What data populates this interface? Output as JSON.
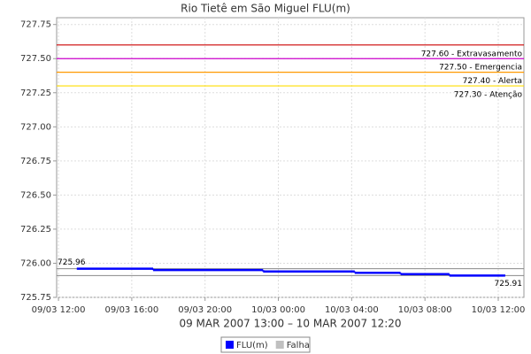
{
  "chart_data": {
    "type": "step-line",
    "title": "Rio Tietê em São Miguel FLU(m)",
    "x_label": "09 MAR 2007 13:00 – 10 MAR 2007 12:20",
    "x": [
      "2007-03-09T13:00",
      "2007-03-09T17:10",
      "2007-03-09T23:10",
      "2007-03-10T04:10",
      "2007-03-10T06:40",
      "2007-03-10T09:20",
      "2007-03-10T12:20"
    ],
    "series": [
      {
        "name": "FLU(m)",
        "color": "#0000ff",
        "values": [
          725.96,
          725.95,
          725.94,
          725.93,
          725.92,
          725.91,
          725.91
        ]
      },
      {
        "name": "Falha",
        "color": "#c0c0c0",
        "values": [
          null,
          null,
          null,
          null,
          null,
          null,
          null
        ]
      }
    ],
    "xlim": [
      "2007-03-09T11:54",
      "2007-03-10T13:24"
    ],
    "xticks": [
      {
        "value": "2007-03-09T12:00",
        "label": "09/03 12:00"
      },
      {
        "value": "2007-03-09T16:00",
        "label": "09/03 16:00"
      },
      {
        "value": "2007-03-09T20:00",
        "label": "09/03 20:00"
      },
      {
        "value": "2007-03-10T00:00",
        "label": "10/03 00:00"
      },
      {
        "value": "2007-03-10T04:00",
        "label": "10/03 04:00"
      },
      {
        "value": "2007-03-10T08:00",
        "label": "10/03 08:00"
      },
      {
        "value": "2007-03-10T12:00",
        "label": "10/03 12:00"
      }
    ],
    "ylim": [
      725.75,
      727.8
    ],
    "yticks": [
      725.75,
      {
        "value": 726,
        "label": "726.00"
      },
      726.25,
      {
        "value": 726.5,
        "label": "726.50"
      },
      726.75,
      {
        "value": 727,
        "label": "727.00"
      },
      727.25,
      {
        "value": 727.5,
        "label": "727.50"
      },
      727.75
    ],
    "grid": true,
    "thresholds": [
      {
        "value": 727.6,
        "label": "727.60 - Extravasamento",
        "color": "#cc0000"
      },
      {
        "value": 727.5,
        "label": "727.50 - Emergencia",
        "color": "#cc00cc"
      },
      {
        "value": 727.4,
        "label": "727.40 - Alerta",
        "color": "#ff9900"
      },
      {
        "value": 727.3,
        "label": "727.30 - Atenção",
        "color": "#ffdd00"
      }
    ],
    "max_marker": {
      "value": 725.96,
      "label": "725.96"
    },
    "min_marker": {
      "value": 725.91,
      "label": "725.91"
    },
    "legend": "bottom"
  }
}
